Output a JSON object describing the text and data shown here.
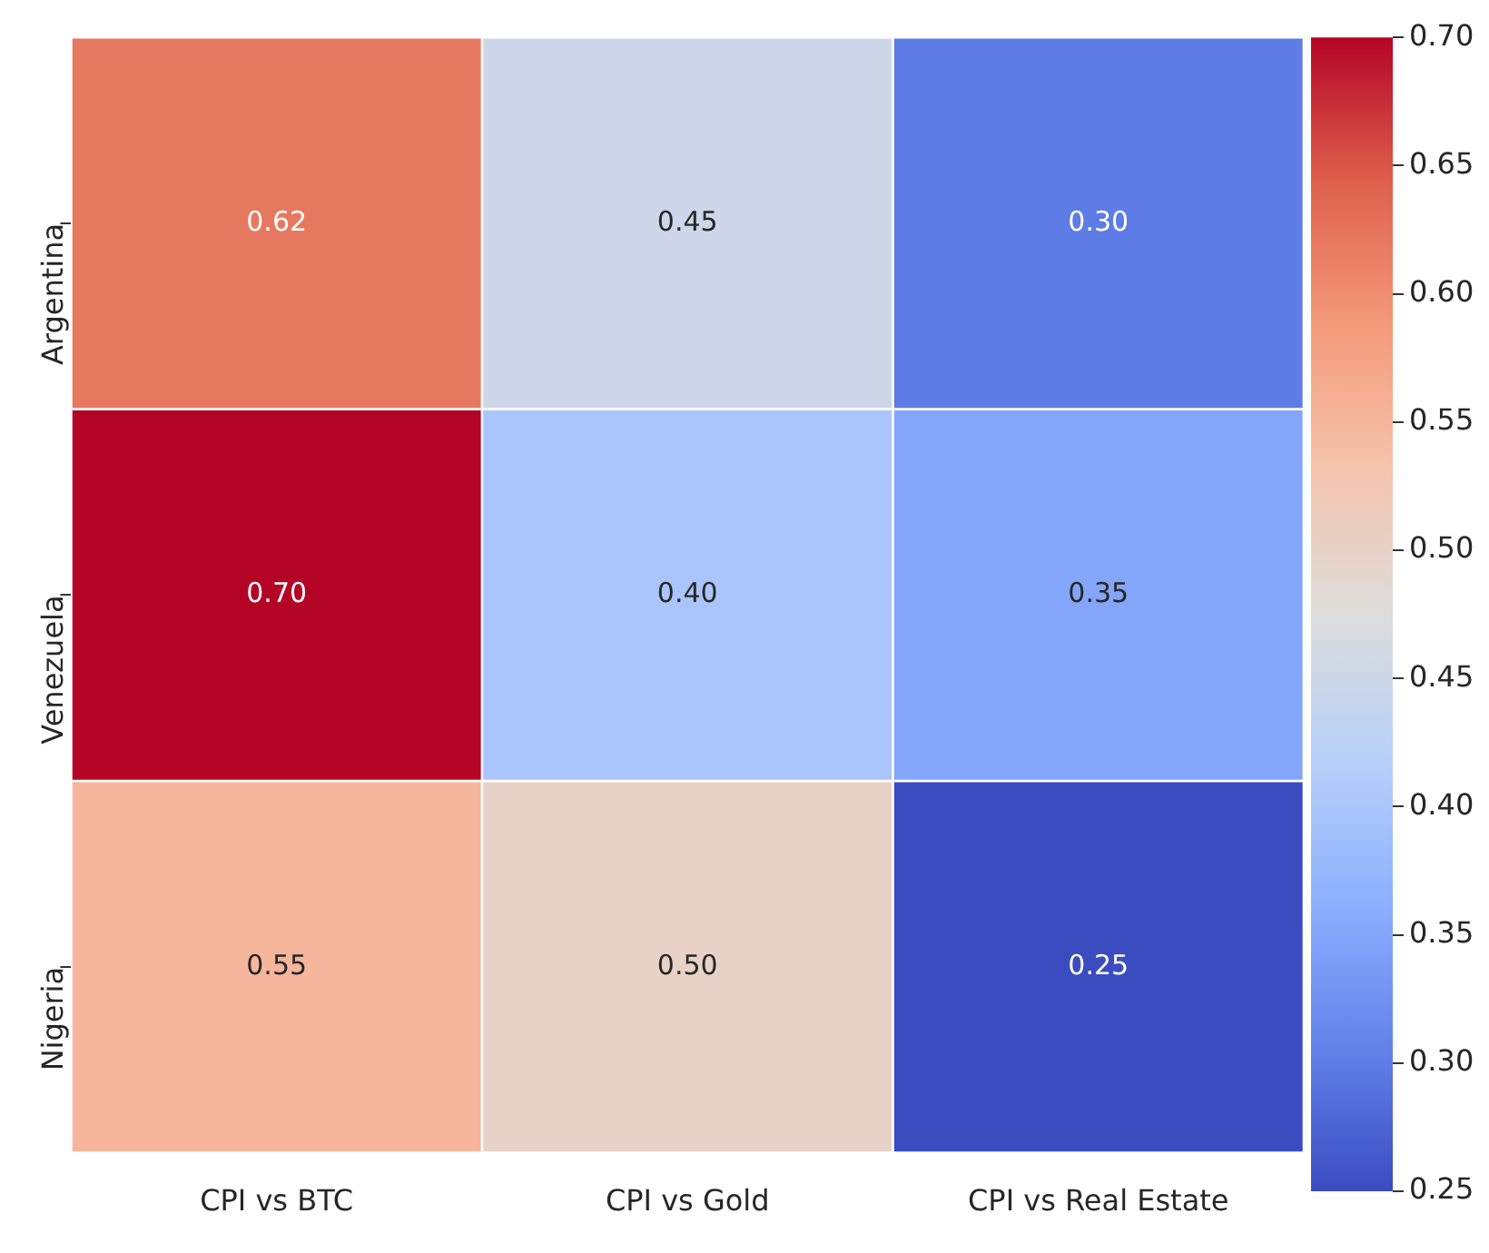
{
  "chart_data": {
    "type": "heatmap",
    "categories": [
      "CPI vs BTC",
      "CPI vs Gold",
      "CPI vs Real Estate"
    ],
    "y_categories": [
      "Argentina",
      "Venezuela",
      "Nigeria"
    ],
    "cells": [
      [
        0.62,
        0.45,
        0.3
      ],
      [
        0.7,
        0.4,
        0.35
      ],
      [
        0.55,
        0.5,
        0.25
      ]
    ],
    "clim": [
      0.25,
      0.7
    ],
    "cticks": [
      {
        "value": 0.25,
        "label": "0.25"
      },
      {
        "value": 0.3,
        "label": "0.30"
      },
      {
        "value": 0.35,
        "label": "0.35"
      },
      {
        "value": 0.4,
        "label": "0.40"
      },
      {
        "value": 0.45,
        "label": "0.45"
      },
      {
        "value": 0.5,
        "label": "0.50"
      },
      {
        "value": 0.55,
        "label": "0.55"
      },
      {
        "value": 0.6,
        "label": "0.60"
      },
      {
        "value": 0.65,
        "label": "0.65"
      },
      {
        "value": 0.7,
        "label": "0.70"
      }
    ],
    "cell_labels": [
      [
        "0.62",
        "0.45",
        "0.30"
      ],
      [
        "0.70",
        "0.40",
        "0.35"
      ],
      [
        "0.55",
        "0.50",
        "0.25"
      ]
    ],
    "data_labels": true
  }
}
